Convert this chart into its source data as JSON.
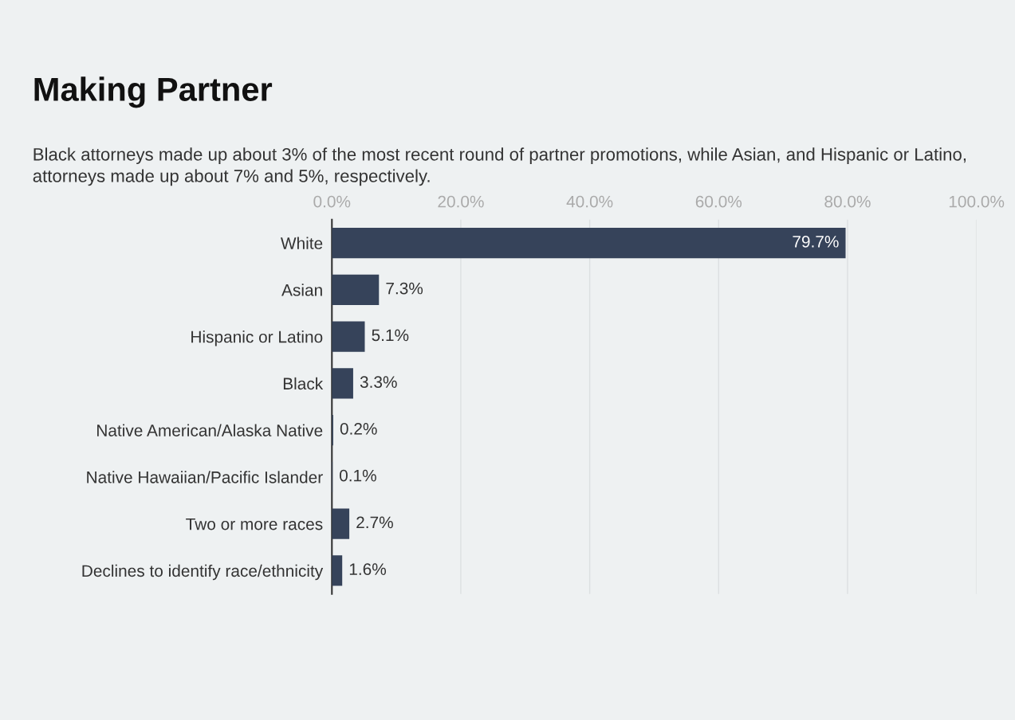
{
  "chart_data": {
    "type": "bar",
    "orientation": "horizontal",
    "title": "Making Partner",
    "subtitle": "Black attorneys made up about 3% of the most recent round of partner promotions, while Asian, and Hispanic or Latino, attorneys made up about 7% and 5%, respectively.",
    "categories": [
      "White",
      "Asian",
      "Hispanic or Latino",
      "Black",
      "Native American/Alaska Native",
      "Native Hawaiian/Pacific Islander",
      "Two or more races",
      "Declines to identify race/ethnicity"
    ],
    "values": [
      79.7,
      7.3,
      5.1,
      3.3,
      0.2,
      0.1,
      2.7,
      1.6
    ],
    "value_labels": [
      "79.7%",
      "7.3%",
      "5.1%",
      "3.3%",
      "0.2%",
      "0.1%",
      "2.7%",
      "1.6%"
    ],
    "color": "#36435a",
    "xlim": [
      0,
      100
    ],
    "xticks": [
      {
        "value": 0,
        "label": "0.0%"
      },
      {
        "value": 20,
        "label": "20.0%"
      },
      {
        "value": 40,
        "label": "40.0%"
      },
      {
        "value": 60,
        "label": "60.0%"
      },
      {
        "value": 80,
        "label": "80.0%"
      },
      {
        "value": 100,
        "label": "100.0%"
      }
    ],
    "grid": "x",
    "legend": false
  }
}
